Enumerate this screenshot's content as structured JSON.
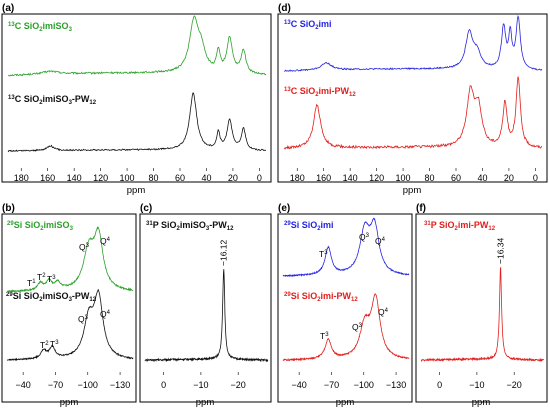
{
  "colors": {
    "green": "#2ca02c",
    "black": "#111111",
    "blue": "#2424e0",
    "red": "#e0201e",
    "frame": "#000000"
  },
  "panels": [
    {
      "id": "a",
      "label": "(a)",
      "xlabel": "ppm",
      "ticks": [
        "180",
        "160",
        "140",
        "120",
        "100",
        "80",
        "60",
        "40",
        "20",
        "0"
      ]
    },
    {
      "id": "d",
      "label": "(d)",
      "xlabel": "ppm",
      "ticks": [
        "180",
        "160",
        "140",
        "120",
        "100",
        "80",
        "60",
        "40",
        "20",
        "0"
      ]
    },
    {
      "id": "b",
      "label": "(b)",
      "xlabel": "ppm",
      "ticks": [
        "-40",
        "-70",
        "-100",
        "-130"
      ]
    },
    {
      "id": "c",
      "label": "(c)",
      "xlabel": "ppm",
      "ticks": [
        "0",
        "-10",
        "-20"
      ]
    },
    {
      "id": "e",
      "label": "(e)",
      "xlabel": "ppm",
      "ticks": [
        "-40",
        "-70",
        "-100",
        "-130"
      ]
    },
    {
      "id": "f",
      "label": "(f)",
      "xlabel": "ppm",
      "ticks": [
        "0",
        "-10",
        "-20"
      ]
    }
  ],
  "spectra": {
    "a_top": {
      "nucleus": "13C",
      "sample": "SiO2imiSO3"
    },
    "a_bot": {
      "nucleus": "13C",
      "sample": "SiO2imiSO3-PW12"
    },
    "d_top": {
      "nucleus": "13C",
      "sample": "SiO2imi"
    },
    "d_bot": {
      "nucleus": "13C",
      "sample": "SiO2imi-PW12"
    },
    "b_top": {
      "nucleus": "29Si",
      "sample": "SiO2imiSO3"
    },
    "b_bot": {
      "nucleus": "29Si",
      "sample": "SiO2imiSO3-PW12"
    },
    "c": {
      "nucleus": "31P",
      "sample": "SiO2imiSO3-PW12",
      "peak_label": "−16.12"
    },
    "e_top": {
      "nucleus": "29Si",
      "sample": "SiO2imi"
    },
    "e_bot": {
      "nucleus": "29Si",
      "sample": "SiO2imi-PW12"
    },
    "f": {
      "nucleus": "31P",
      "sample": "SiO2imi-PW12",
      "peak_label": "−16.34"
    }
  },
  "annotations": {
    "T1": "T",
    "T1_sup": "1",
    "T2": "T",
    "T2_sup": "2",
    "T3": "T",
    "T3_sup": "3",
    "Q3": "Q",
    "Q3_sup": "3",
    "Q4": "Q",
    "Q4_sup": "4"
  },
  "chart_data": [
    {
      "panel": "a",
      "type": "line",
      "xlabel": "ppm",
      "xlim": [
        190,
        -5
      ],
      "reversed_x": true,
      "series": [
        {
          "name": "13C SiO2imiSO3",
          "color": "#2ca02c",
          "offset": 1,
          "baseline": 0.12,
          "noise": 0.015,
          "peaks": [
            [
              158,
              7,
              0.05
            ],
            [
              49.5,
              4,
              0.85
            ],
            [
              44,
              4,
              0.35
            ],
            [
              31,
              1.6,
              0.35
            ],
            [
              22.5,
              2.5,
              0.6
            ],
            [
              12,
              2.2,
              0.4
            ]
          ]
        },
        {
          "name": "13C SiO2imiSO3-PW12",
          "color": "#111111",
          "offset": 0,
          "baseline": 0.05,
          "noise": 0.012,
          "peaks": [
            [
              158,
              3,
              0.08
            ],
            [
              50,
              3.2,
              0.95
            ],
            [
              31,
              1.5,
              0.28
            ],
            [
              22.5,
              2.3,
              0.5
            ],
            [
              12,
              2,
              0.35
            ]
          ]
        }
      ]
    },
    {
      "panel": "d",
      "type": "line",
      "xlabel": "ppm",
      "xlim": [
        190,
        -5
      ],
      "reversed_x": true,
      "series": [
        {
          "name": "13C SiO2imi",
          "color": "#2424e0",
          "offset": 1,
          "baseline": 0.1,
          "noise": 0.012,
          "peaks": [
            [
              158,
              4.5,
              0.12
            ],
            [
              50,
              3.2,
              0.6
            ],
            [
              44,
              3.5,
              0.25
            ],
            [
              24,
              2,
              0.7
            ],
            [
              19,
              1.4,
              0.55
            ],
            [
              13,
              2,
              0.85
            ]
          ]
        },
        {
          "name": "13C SiO2imi-PW12",
          "color": "#e0201e",
          "offset": 0,
          "baseline": 0.05,
          "noise": 0.018,
          "peaks": [
            [
              165,
              3.2,
              0.6
            ],
            [
              49,
              3.5,
              0.75
            ],
            [
              43,
              3,
              0.5
            ],
            [
              23,
              2,
              0.6
            ],
            [
              13,
              2,
              0.95
            ]
          ]
        }
      ]
    },
    {
      "panel": "b",
      "type": "line",
      "xlabel": "ppm",
      "xlim": [
        -25,
        -142
      ],
      "reversed_x": true,
      "series": [
        {
          "name": "29Si SiO2imiSO3",
          "color": "#2ca02c",
          "offset": 1,
          "baseline": 0.05,
          "noise": 0.012,
          "peaks": [
            [
              -56,
              3,
              0.12
            ],
            [
              -64,
              3,
              0.15
            ],
            [
              -72,
              3,
              0.12
            ],
            [
              -101,
              6,
              0.65
            ],
            [
              -110,
              5,
              0.85
            ]
          ]
        },
        {
          "name": "29Si SiO2imiSO3-PW12",
          "color": "#111111",
          "offset": 0,
          "baseline": 0.04,
          "noise": 0.01,
          "peaks": [
            [
              -59,
              3,
              0.13
            ],
            [
              -67,
              3.2,
              0.18
            ],
            [
              -101,
              5.5,
              0.6
            ],
            [
              -110,
              5,
              0.95
            ]
          ]
        }
      ]
    },
    {
      "panel": "c",
      "type": "line",
      "xlabel": "ppm",
      "xlim": [
        5,
        -28
      ],
      "reversed_x": true,
      "series": [
        {
          "name": "31P SiO2imiSO3-PW12",
          "color": "#111111",
          "offset": 0,
          "baseline": 0.03,
          "noise": 0.01,
          "peaks": [
            [
              -16.12,
              0.35,
              1
            ]
          ]
        }
      ]
    },
    {
      "panel": "e",
      "type": "line",
      "xlabel": "ppm",
      "xlim": [
        -25,
        -142
      ],
      "reversed_x": true,
      "series": [
        {
          "name": "29Si SiO2imi",
          "color": "#2424e0",
          "offset": 1,
          "baseline": 0.04,
          "noise": 0.01,
          "peaks": [
            [
              -67,
              3.5,
              0.45
            ],
            [
              -101,
              5.5,
              0.7
            ],
            [
              -110,
              5,
              0.75
            ]
          ]
        },
        {
          "name": "29Si SiO2imi-PW12",
          "color": "#e0201e",
          "offset": 0,
          "baseline": 0.04,
          "noise": 0.012,
          "peaks": [
            [
              -67,
              3.5,
              0.33
            ],
            [
              -101,
              5.5,
              0.55
            ],
            [
              -111,
              5,
              1
            ]
          ]
        }
      ]
    },
    {
      "panel": "f",
      "type": "line",
      "xlabel": "ppm",
      "xlim": [
        5,
        -28
      ],
      "reversed_x": true,
      "series": [
        {
          "name": "31P SiO2imi-PW12",
          "color": "#e0201e",
          "offset": 0,
          "baseline": 0.03,
          "noise": 0.01,
          "peaks": [
            [
              -16.34,
              0.35,
              1
            ]
          ]
        }
      ]
    }
  ]
}
